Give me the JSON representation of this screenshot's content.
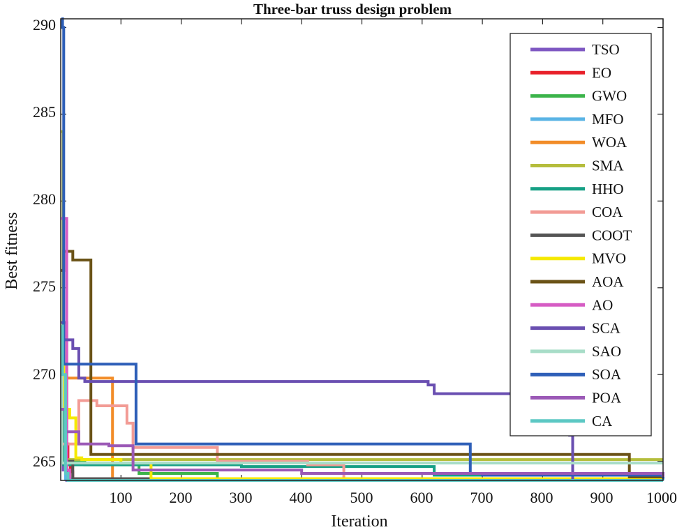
{
  "chart_data": {
    "type": "line",
    "title": "Three-bar truss design problem",
    "xlabel": "Iteration",
    "ylabel": "Best fitness",
    "xlim": [
      0,
      1000
    ],
    "ylim": [
      263.9,
      290.5
    ],
    "xticks": [
      "100",
      "200",
      "300",
      "400",
      "500",
      "600",
      "700",
      "800",
      "900",
      "1000"
    ],
    "yticks": [
      "265",
      "270",
      "275",
      "280",
      "285",
      "290"
    ],
    "legend_position": "top-right",
    "series": [
      {
        "name": "TSO",
        "color": "#7e57c2",
        "x": [
          1,
          2,
          4,
          10,
          1000
        ],
        "y": [
          270,
          266,
          264.5,
          263.9,
          263.9
        ]
      },
      {
        "name": "EO",
        "color": "#e8202a",
        "x": [
          1,
          8,
          12,
          16,
          20,
          1000
        ],
        "y": [
          270,
          266,
          265,
          264.4,
          263.9,
          263.9
        ]
      },
      {
        "name": "GWO",
        "color": "#3cb44b",
        "x": [
          1,
          6,
          40,
          130,
          260,
          1000
        ],
        "y": [
          267,
          265,
          264.8,
          264.3,
          264,
          264
        ]
      },
      {
        "name": "MFO",
        "color": "#5ab4e5",
        "x": [
          1,
          4,
          8,
          1000
        ],
        "y": [
          272,
          266,
          264,
          263.9
        ]
      },
      {
        "name": "WOA",
        "color": "#f28c28",
        "x": [
          1,
          10,
          80,
          86,
          1000
        ],
        "y": [
          267,
          269.8,
          269.8,
          263.9,
          263.9
        ]
      },
      {
        "name": "SMA",
        "color": "#b5bd3c",
        "x": [
          1,
          4,
          1000
        ],
        "y": [
          284,
          265.1,
          265.1
        ]
      },
      {
        "name": "HHO",
        "color": "#16a085",
        "x": [
          1,
          5,
          40,
          300,
          610,
          620,
          1000
        ],
        "y": [
          268,
          264.8,
          264.8,
          264.7,
          264.7,
          264.2,
          264.1
        ]
      },
      {
        "name": "COA",
        "color": "#f29b95",
        "x": [
          1,
          30,
          60,
          110,
          120,
          250,
          260,
          400,
          410,
          460,
          470,
          1000
        ],
        "y": [
          266,
          268.5,
          268.2,
          267.2,
          265.8,
          265.8,
          265,
          265,
          264.8,
          264.8,
          264,
          264
        ]
      },
      {
        "name": "COOT",
        "color": "#555555",
        "x": [
          1,
          10,
          20,
          1000
        ],
        "y": [
          273,
          265,
          264,
          264
        ]
      },
      {
        "name": "MVO",
        "color": "#f5e900",
        "x": [
          1,
          5,
          15,
          25,
          35,
          100,
          150,
          410,
          1000
        ],
        "y": [
          272,
          268,
          267.5,
          265.2,
          265.1,
          264.9,
          264,
          264,
          264
        ]
      },
      {
        "name": "AOA",
        "color": "#6b5317",
        "x": [
          1,
          5,
          20,
          40,
          50,
          940,
          944,
          1000
        ],
        "y": [
          276,
          277.1,
          276.6,
          276.6,
          265.4,
          265.4,
          264.1,
          264.1
        ]
      },
      {
        "name": "AO",
        "color": "#d65cc4",
        "x": [
          1,
          10,
          15,
          1000
        ],
        "y": [
          279,
          264.5,
          263.9,
          263.9
        ]
      },
      {
        "name": "SCA",
        "color": "#6a4fb1",
        "x": [
          1,
          5,
          10,
          20,
          30,
          40,
          50,
          120,
          610,
          620,
          800,
          845,
          850,
          1000
        ],
        "y": [
          273,
          272,
          272,
          271.5,
          269.8,
          269.6,
          269.6,
          269.6,
          269.4,
          268.9,
          268.8,
          266.5,
          263.9,
          263.9
        ]
      },
      {
        "name": "SAO",
        "color": "#a8ddc8",
        "x": [
          1,
          2,
          1000
        ],
        "y": [
          270,
          264.9,
          264.9
        ]
      },
      {
        "name": "SOA",
        "color": "#2e5fb8",
        "x": [
          1,
          3,
          5,
          115,
          125,
          660,
          680,
          700,
          940,
          1000
        ],
        "y": [
          290.5,
          290,
          270.6,
          270.6,
          266,
          266,
          264.3,
          264.2,
          264.2,
          264
        ]
      },
      {
        "name": "POA",
        "color": "#9b59b6",
        "x": [
          1,
          8,
          30,
          80,
          120,
          400,
          1000
        ],
        "y": [
          268,
          266.7,
          266,
          265.9,
          264.5,
          264.3,
          264.1
        ]
      },
      {
        "name": "CA",
        "color": "#5cc8c4",
        "x": [
          1,
          3,
          8,
          12,
          1000
        ],
        "y": [
          272.8,
          270,
          264.3,
          263.9,
          263.9
        ]
      }
    ]
  }
}
